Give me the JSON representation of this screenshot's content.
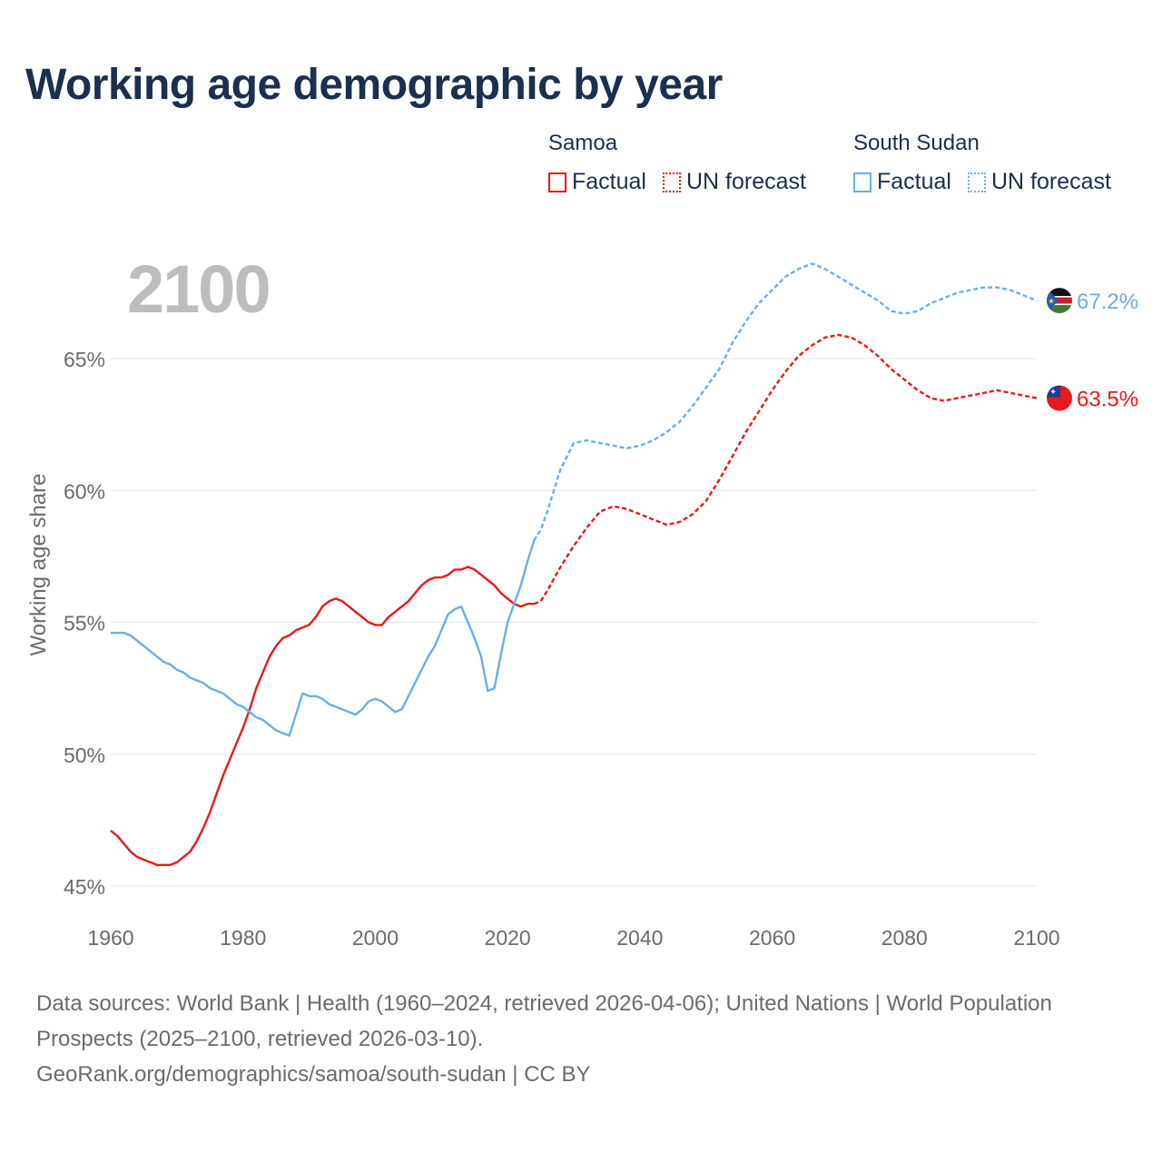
{
  "title": "Working age demographic by year",
  "year_display": "2100",
  "legend": {
    "samoa": {
      "country": "Samoa",
      "factual": "Factual",
      "forecast": "UN forecast",
      "color": "#e8191c"
    },
    "south_sudan": {
      "country": "South Sudan",
      "factual": "Factual",
      "forecast": "UN forecast",
      "color": "#6aaee6"
    }
  },
  "footer": {
    "sources": "Data sources: World Bank | Health (1960–2024, retrieved 2026-04-06); United Nations | World Population Prospects (2025–2100, retrieved 2026-03-10).",
    "credit": "GeoRank.org/demographics/samoa/south-sudan | CC BY"
  },
  "chart_data": {
    "type": "line",
    "title": "Working age demographic by year",
    "xlabel": "",
    "ylabel": "Working age share",
    "xlim": [
      1960,
      2100
    ],
    "ylim": [
      45,
      70
    ],
    "x_ticks": [
      1960,
      1980,
      2000,
      2020,
      2040,
      2060,
      2080,
      2100
    ],
    "x_tick_labels": [
      "1960",
      "1980",
      "2000",
      "2020",
      "2040",
      "2060",
      "2080",
      "2100"
    ],
    "y_ticks": [
      45,
      50,
      55,
      60,
      65
    ],
    "y_tick_labels": [
      "45%",
      "50%",
      "55%",
      "60%",
      "65%"
    ],
    "grid": true,
    "series": [
      {
        "name": "Samoa",
        "color": "#e8191c",
        "end_label": "63.5%",
        "factual": [
          [
            1960,
            47.1
          ],
          [
            1961,
            46.9
          ],
          [
            1962,
            46.6
          ],
          [
            1963,
            46.3
          ],
          [
            1964,
            46.1
          ],
          [
            1965,
            46.0
          ],
          [
            1966,
            45.9
          ],
          [
            1967,
            45.8
          ],
          [
            1968,
            45.8
          ],
          [
            1969,
            45.8
          ],
          [
            1970,
            45.9
          ],
          [
            1971,
            46.1
          ],
          [
            1972,
            46.3
          ],
          [
            1973,
            46.7
          ],
          [
            1974,
            47.2
          ],
          [
            1975,
            47.8
          ],
          [
            1976,
            48.5
          ],
          [
            1977,
            49.2
          ],
          [
            1978,
            49.8
          ],
          [
            1979,
            50.4
          ],
          [
            1980,
            51.0
          ],
          [
            1981,
            51.7
          ],
          [
            1982,
            52.5
          ],
          [
            1983,
            53.1
          ],
          [
            1984,
            53.7
          ],
          [
            1985,
            54.1
          ],
          [
            1986,
            54.4
          ],
          [
            1987,
            54.5
          ],
          [
            1988,
            54.7
          ],
          [
            1989,
            54.8
          ],
          [
            1990,
            54.9
          ],
          [
            1991,
            55.2
          ],
          [
            1992,
            55.6
          ],
          [
            1993,
            55.8
          ],
          [
            1994,
            55.9
          ],
          [
            1995,
            55.8
          ],
          [
            1996,
            55.6
          ],
          [
            1997,
            55.4
          ],
          [
            1998,
            55.2
          ],
          [
            1999,
            55.0
          ],
          [
            2000,
            54.9
          ],
          [
            2001,
            54.9
          ],
          [
            2002,
            55.2
          ],
          [
            2003,
            55.4
          ],
          [
            2004,
            55.6
          ],
          [
            2005,
            55.8
          ],
          [
            2006,
            56.1
          ],
          [
            2007,
            56.4
          ],
          [
            2008,
            56.6
          ],
          [
            2009,
            56.7
          ],
          [
            2010,
            56.7
          ],
          [
            2011,
            56.8
          ],
          [
            2012,
            57.0
          ],
          [
            2013,
            57.0
          ],
          [
            2014,
            57.1
          ],
          [
            2015,
            57.0
          ],
          [
            2016,
            56.8
          ],
          [
            2017,
            56.6
          ],
          [
            2018,
            56.4
          ],
          [
            2019,
            56.1
          ],
          [
            2020,
            55.9
          ],
          [
            2021,
            55.7
          ],
          [
            2022,
            55.6
          ],
          [
            2023,
            55.7
          ],
          [
            2024,
            55.7
          ]
        ],
        "forecast": [
          [
            2024,
            55.7
          ],
          [
            2025,
            55.8
          ],
          [
            2026,
            56.2
          ],
          [
            2028,
            57.1
          ],
          [
            2030,
            57.9
          ],
          [
            2032,
            58.6
          ],
          [
            2034,
            59.2
          ],
          [
            2036,
            59.4
          ],
          [
            2038,
            59.3
          ],
          [
            2040,
            59.1
          ],
          [
            2042,
            58.9
          ],
          [
            2044,
            58.7
          ],
          [
            2046,
            58.8
          ],
          [
            2048,
            59.1
          ],
          [
            2050,
            59.6
          ],
          [
            2052,
            60.4
          ],
          [
            2054,
            61.3
          ],
          [
            2056,
            62.2
          ],
          [
            2058,
            63.0
          ],
          [
            2060,
            63.8
          ],
          [
            2062,
            64.5
          ],
          [
            2064,
            65.1
          ],
          [
            2066,
            65.5
          ],
          [
            2068,
            65.8
          ],
          [
            2070,
            65.9
          ],
          [
            2072,
            65.8
          ],
          [
            2074,
            65.5
          ],
          [
            2076,
            65.1
          ],
          [
            2078,
            64.6
          ],
          [
            2080,
            64.2
          ],
          [
            2082,
            63.8
          ],
          [
            2084,
            63.5
          ],
          [
            2086,
            63.4
          ],
          [
            2088,
            63.5
          ],
          [
            2090,
            63.6
          ],
          [
            2092,
            63.7
          ],
          [
            2094,
            63.8
          ],
          [
            2096,
            63.7
          ],
          [
            2098,
            63.6
          ],
          [
            2100,
            63.5
          ]
        ]
      },
      {
        "name": "South Sudan",
        "color": "#6aaee6",
        "end_label": "67.2%",
        "factual": [
          [
            1960,
            54.6
          ],
          [
            1961,
            54.6
          ],
          [
            1962,
            54.6
          ],
          [
            1963,
            54.5
          ],
          [
            1964,
            54.3
          ],
          [
            1965,
            54.1
          ],
          [
            1966,
            53.9
          ],
          [
            1967,
            53.7
          ],
          [
            1968,
            53.5
          ],
          [
            1969,
            53.4
          ],
          [
            1970,
            53.2
          ],
          [
            1971,
            53.1
          ],
          [
            1972,
            52.9
          ],
          [
            1973,
            52.8
          ],
          [
            1974,
            52.7
          ],
          [
            1975,
            52.5
          ],
          [
            1976,
            52.4
          ],
          [
            1977,
            52.3
          ],
          [
            1978,
            52.1
          ],
          [
            1979,
            51.9
          ],
          [
            1980,
            51.8
          ],
          [
            1981,
            51.6
          ],
          [
            1982,
            51.4
          ],
          [
            1983,
            51.3
          ],
          [
            1984,
            51.1
          ],
          [
            1985,
            50.9
          ],
          [
            1986,
            50.8
          ],
          [
            1987,
            50.7
          ],
          [
            1988,
            51.5
          ],
          [
            1989,
            52.3
          ],
          [
            1990,
            52.2
          ],
          [
            1991,
            52.2
          ],
          [
            1992,
            52.1
          ],
          [
            1993,
            51.9
          ],
          [
            1994,
            51.8
          ],
          [
            1995,
            51.7
          ],
          [
            1996,
            51.6
          ],
          [
            1997,
            51.5
          ],
          [
            1998,
            51.7
          ],
          [
            1999,
            52.0
          ],
          [
            2000,
            52.1
          ],
          [
            2001,
            52.0
          ],
          [
            2002,
            51.8
          ],
          [
            2003,
            51.6
          ],
          [
            2004,
            51.7
          ],
          [
            2005,
            52.2
          ],
          [
            2006,
            52.7
          ],
          [
            2007,
            53.2
          ],
          [
            2008,
            53.7
          ],
          [
            2009,
            54.1
          ],
          [
            2010,
            54.7
          ],
          [
            2011,
            55.3
          ],
          [
            2012,
            55.5
          ],
          [
            2013,
            55.6
          ],
          [
            2014,
            55.0
          ],
          [
            2015,
            54.4
          ],
          [
            2016,
            53.7
          ],
          [
            2017,
            52.4
          ],
          [
            2018,
            52.5
          ],
          [
            2019,
            53.8
          ],
          [
            2020,
            55.0
          ],
          [
            2021,
            55.7
          ],
          [
            2022,
            56.4
          ],
          [
            2023,
            57.3
          ],
          [
            2024,
            58.1
          ]
        ],
        "forecast": [
          [
            2024,
            58.1
          ],
          [
            2025,
            58.5
          ],
          [
            2026,
            59.2
          ],
          [
            2028,
            60.8
          ],
          [
            2030,
            61.8
          ],
          [
            2032,
            61.9
          ],
          [
            2034,
            61.8
          ],
          [
            2036,
            61.7
          ],
          [
            2038,
            61.6
          ],
          [
            2040,
            61.7
          ],
          [
            2042,
            61.9
          ],
          [
            2044,
            62.2
          ],
          [
            2046,
            62.6
          ],
          [
            2048,
            63.2
          ],
          [
            2050,
            63.9
          ],
          [
            2052,
            64.6
          ],
          [
            2054,
            65.6
          ],
          [
            2056,
            66.4
          ],
          [
            2058,
            67.1
          ],
          [
            2060,
            67.6
          ],
          [
            2062,
            68.1
          ],
          [
            2064,
            68.4
          ],
          [
            2066,
            68.6
          ],
          [
            2068,
            68.4
          ],
          [
            2070,
            68.1
          ],
          [
            2072,
            67.8
          ],
          [
            2074,
            67.5
          ],
          [
            2076,
            67.2
          ],
          [
            2078,
            66.8
          ],
          [
            2080,
            66.7
          ],
          [
            2082,
            66.8
          ],
          [
            2084,
            67.1
          ],
          [
            2086,
            67.3
          ],
          [
            2088,
            67.5
          ],
          [
            2090,
            67.6
          ],
          [
            2092,
            67.7
          ],
          [
            2094,
            67.7
          ],
          [
            2096,
            67.6
          ],
          [
            2098,
            67.4
          ],
          [
            2100,
            67.2
          ]
        ]
      }
    ]
  }
}
